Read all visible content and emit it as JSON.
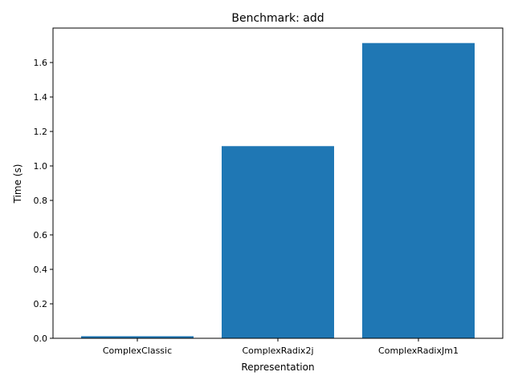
{
  "chart_data": {
    "type": "bar",
    "title": "Benchmark: add",
    "xlabel": "Representation",
    "ylabel": "Time (s)",
    "categories": [
      "ComplexClassic",
      "ComplexRadix2j",
      "ComplexRadixJm1"
    ],
    "values": [
      0.012,
      1.115,
      1.713
    ],
    "ylim": [
      0,
      1.8
    ],
    "yticks": [
      0.0,
      0.2,
      0.4,
      0.6,
      0.8,
      1.0,
      1.2,
      1.4,
      1.6
    ],
    "ytick_labels": [
      "0.0",
      "0.2",
      "0.4",
      "0.6",
      "0.8",
      "1.0",
      "1.2",
      "1.4",
      "1.6"
    ],
    "bar_color": "#1f77b4",
    "grid": false,
    "legend": "none"
  }
}
